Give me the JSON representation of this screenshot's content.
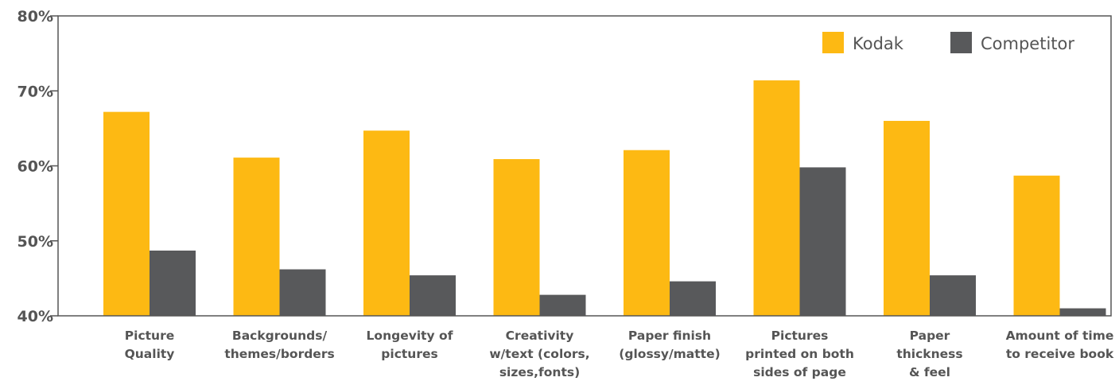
{
  "chart_data": {
    "type": "bar",
    "title": "",
    "xlabel": "",
    "ylabel": "",
    "ylim": [
      40,
      80
    ],
    "yticks": [
      "80%",
      "70%",
      "60%",
      "50%",
      "40%"
    ],
    "ytick_values": [
      80,
      70,
      60,
      50,
      40
    ],
    "legend_position": "top-right",
    "grid": false,
    "categories": [
      [
        "Picture",
        "Quality"
      ],
      [
        "Backgrounds/",
        "themes/borders"
      ],
      [
        "Longevity of",
        "pictures"
      ],
      [
        "Creativity",
        "w/text (colors,",
        "sizes,fonts)"
      ],
      [
        "Paper finish",
        "(glossy/matte)"
      ],
      [
        "Pictures",
        "printed on both",
        "sides of page"
      ],
      [
        "Paper",
        "thickness",
        "& feel"
      ],
      [
        "Amount of time",
        "to receive book"
      ]
    ],
    "series": [
      {
        "name": "Kodak",
        "color": "#FDB913",
        "values": [
          67.2,
          61.1,
          64.7,
          60.9,
          62.1,
          71.4,
          66.0,
          58.7
        ]
      },
      {
        "name": "Competitor",
        "color": "#58595B",
        "values": [
          48.7,
          46.2,
          45.4,
          42.8,
          44.6,
          59.8,
          45.4,
          41.0
        ]
      }
    ]
  }
}
